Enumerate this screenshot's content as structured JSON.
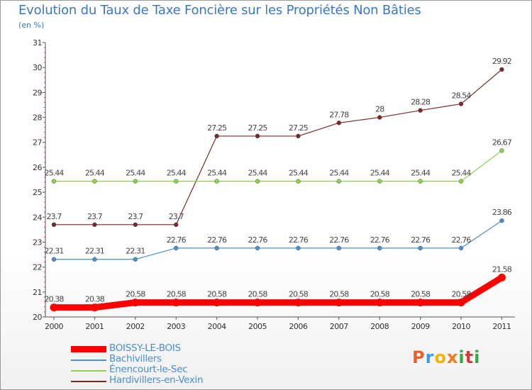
{
  "title": "Evolution du Taux de Taxe Foncière sur les Propriétés Non Bâties",
  "subtitle": "(en %)",
  "logo_text": "Proxiti",
  "chart_data": {
    "type": "line",
    "title": "Evolution du Taux de Taxe Foncière sur les Propriétés Non Bâties",
    "ylabel": "(en %)",
    "xlabel": "",
    "ylim": [
      20,
      31
    ],
    "yticks": [
      20,
      21,
      22,
      23,
      24,
      25,
      26,
      27,
      28,
      29,
      30,
      31
    ],
    "grid": false,
    "legend_position": "bottom-left",
    "categories": [
      "2000",
      "2001",
      "2002",
      "2003",
      "2004",
      "2005",
      "2006",
      "2007",
      "2008",
      "2009",
      "2010",
      "2011"
    ],
    "series": [
      {
        "name": "BOISSY-LE-BOIS",
        "color": "#ff0000",
        "values": [
          20.38,
          20.38,
          20.58,
          20.58,
          20.58,
          20.58,
          20.58,
          20.58,
          20.58,
          20.58,
          20.58,
          21.58
        ],
        "labels": [
          "20.38",
          "20.38",
          "20.58",
          "20.58",
          "20.58",
          "20.58",
          "20.58",
          "20.58",
          "20.58",
          "20.58",
          "20.58",
          "21.58"
        ]
      },
      {
        "name": "Bachivillers",
        "color": "#4a8fce",
        "values": [
          22.31,
          22.31,
          22.31,
          22.76,
          22.76,
          22.76,
          22.76,
          22.76,
          22.76,
          22.76,
          22.76,
          23.86
        ],
        "labels": [
          "22.31",
          "22.31",
          "22.31",
          "22.76",
          "22.76",
          "22.76",
          "22.76",
          "22.76",
          "22.76",
          "22.76",
          "22.76",
          "23.86"
        ]
      },
      {
        "name": "Énencourt-le-Sec",
        "color": "#8fd14f",
        "values": [
          25.44,
          25.44,
          25.44,
          25.44,
          25.44,
          25.44,
          25.44,
          25.44,
          25.44,
          25.44,
          25.44,
          26.67
        ],
        "labels": [
          "25.44",
          "25.44",
          "25.44",
          "25.44",
          "25.44",
          "25.44",
          "25.44",
          "25.44",
          "25.44",
          "25.44",
          "25.44",
          "26.67"
        ]
      },
      {
        "name": "Hardivillers-en-Vexin",
        "color": "#7a2a2a",
        "values": [
          23.7,
          23.7,
          23.7,
          23.7,
          27.25,
          27.25,
          27.25,
          27.78,
          28,
          28.28,
          28.54,
          29.92
        ],
        "labels": [
          "23.7",
          "23.7",
          "23.7",
          "23.7",
          "27.25",
          "27.25",
          "27.25",
          "27.78",
          "28",
          "28.28",
          "28.54",
          "29.92"
        ]
      }
    ]
  }
}
